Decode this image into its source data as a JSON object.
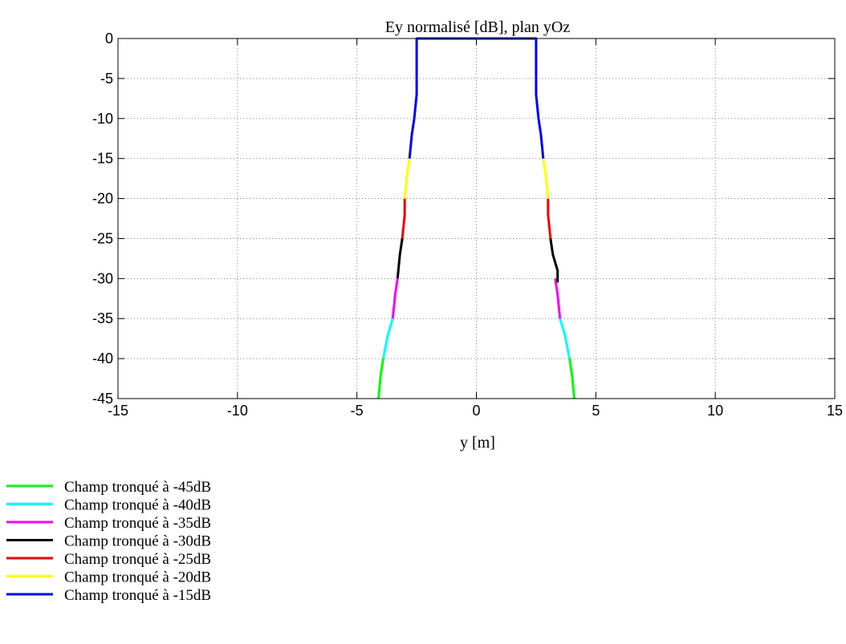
{
  "chart_data": {
    "type": "line",
    "title": "Ey normalisé [dB], plan yOz",
    "xlabel": "y [m]",
    "ylabel": "",
    "xlim": [
      -15,
      15
    ],
    "ylim": [
      -45,
      0
    ],
    "xticks": [
      -15,
      -10,
      -5,
      0,
      5,
      10,
      15
    ],
    "yticks": [
      0,
      -5,
      -10,
      -15,
      -20,
      -25,
      -30,
      -35,
      -40,
      -45
    ],
    "grid": true,
    "legend_position": "below-left, outside axes",
    "series": [
      {
        "name": "Champ tronqué à -45dB",
        "color": "#00ff00",
        "segments": [
          {
            "x": [
              -4.1,
              -4.0,
              -3.9
            ],
            "y": [
              -45,
              -42,
              -40
            ]
          },
          {
            "x": [
              3.9,
              4.0,
              4.1
            ],
            "y": [
              -40,
              -42,
              -45
            ]
          }
        ]
      },
      {
        "name": "Champ tronqué à -40dB",
        "color": "#00ffff",
        "segments": [
          {
            "x": [
              -3.9,
              -3.7,
              -3.5
            ],
            "y": [
              -40,
              -37,
              -35
            ]
          },
          {
            "x": [
              3.5,
              3.7,
              3.9
            ],
            "y": [
              -35,
              -37,
              -40
            ]
          }
        ]
      },
      {
        "name": "Champ tronqué à -35dB",
        "color": "#ff00ff",
        "segments": [
          {
            "x": [
              -3.5,
              -3.4,
              -3.3
            ],
            "y": [
              -35,
              -32,
              -30
            ]
          },
          {
            "x": [
              3.3,
              3.4,
              3.5
            ],
            "y": [
              -30,
              -32,
              -35
            ]
          }
        ]
      },
      {
        "name": "Champ tronqué à -30dB",
        "color": "#000000",
        "segments": [
          {
            "x": [
              -3.3,
              -3.2,
              -3.1
            ],
            "y": [
              -30,
              -27,
              -25
            ]
          },
          {
            "x": [
              3.1,
              3.2,
              3.4,
              3.4
            ],
            "y": [
              -25,
              -27,
              -29,
              -30.5
            ]
          }
        ]
      },
      {
        "name": "Champ tronqué à -25dB",
        "color": "#ff0000",
        "segments": [
          {
            "x": [
              -3.1,
              -3.0,
              -3.0
            ],
            "y": [
              -25,
              -22,
              -20
            ]
          },
          {
            "x": [
              3.0,
              3.0,
              3.1
            ],
            "y": [
              -20,
              -22,
              -25
            ]
          }
        ]
      },
      {
        "name": "Champ tronqué à -20dB",
        "color": "#ffff00",
        "segments": [
          {
            "x": [
              -3.0,
              -2.9,
              -2.8
            ],
            "y": [
              -20,
              -17,
              -15
            ]
          },
          {
            "x": [
              2.8,
              2.9,
              3.0
            ],
            "y": [
              -15,
              -17,
              -20
            ]
          }
        ]
      },
      {
        "name": "Champ tronqué à -15dB",
        "color": "#0000ff",
        "segments": [
          {
            "x": [
              -2.8,
              -2.7,
              -2.6,
              -2.5,
              -2.5,
              -2.5,
              0,
              2.5,
              2.5,
              2.5,
              2.6,
              2.7,
              2.8
            ],
            "y": [
              -15,
              -12,
              -10,
              -7,
              -3,
              0,
              0,
              0,
              -3,
              -7,
              -10,
              -12,
              -15
            ]
          }
        ]
      }
    ]
  }
}
